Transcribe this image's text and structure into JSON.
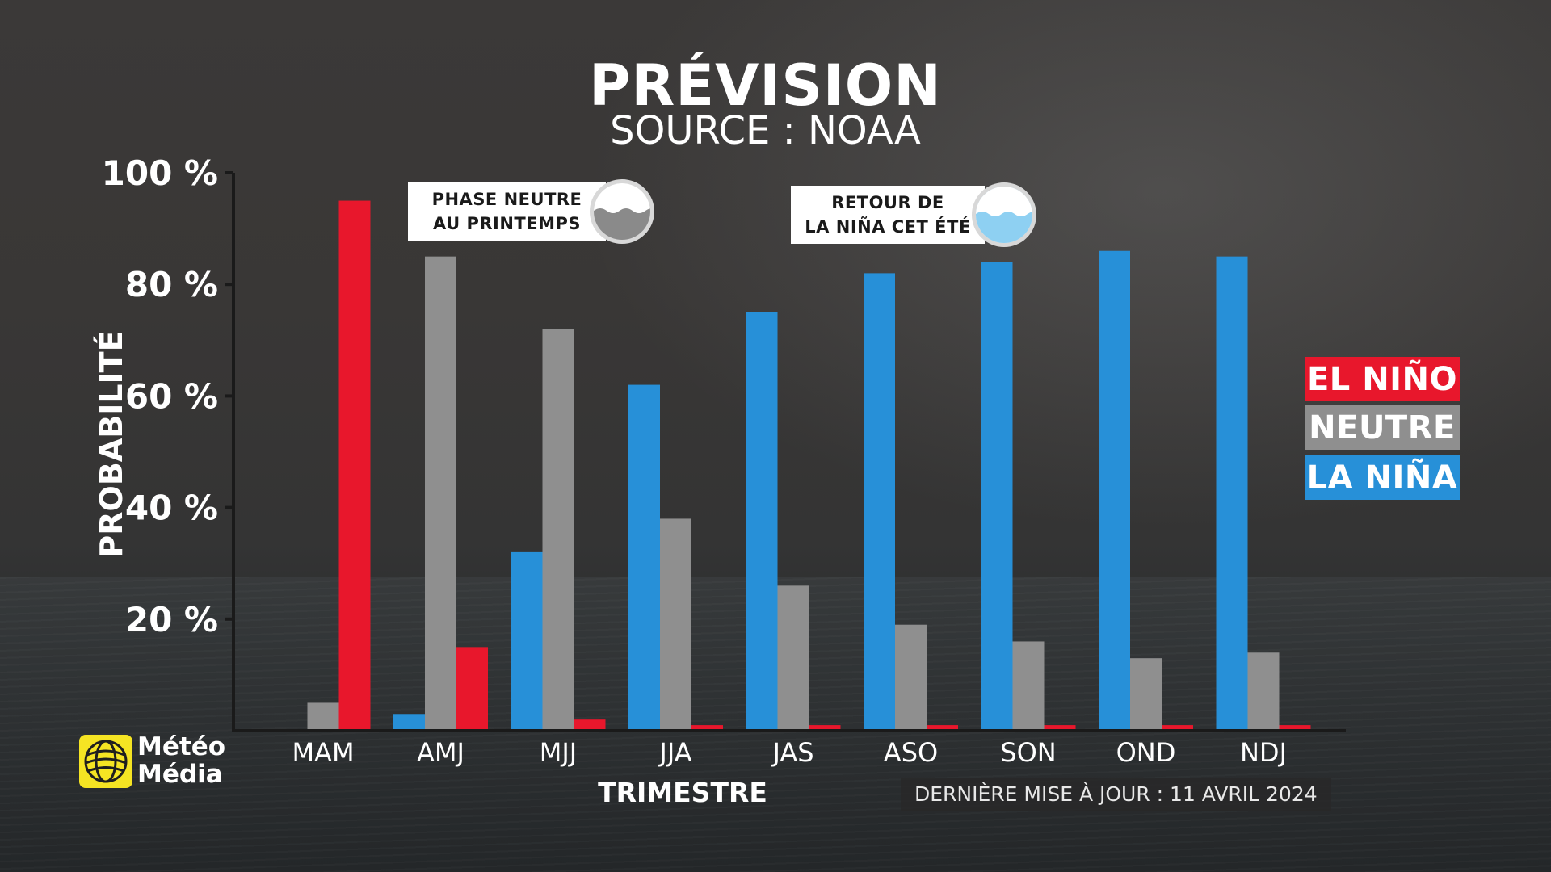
{
  "title": "PRÉVISION",
  "subtitle": "SOURCE : NOAA",
  "callouts": [
    {
      "lines": [
        "PHASE NEUTRE",
        "AU PRINTEMPS"
      ],
      "icon": "globe-neutral-icon",
      "color": "#8a8a8a"
    },
    {
      "lines": [
        "RETOUR DE",
        "LA NIÑA CET ÉTÉ"
      ],
      "icon": "globe-la-nina-icon",
      "color": "#8ed0f2"
    }
  ],
  "legend": [
    {
      "label": "EL NIÑO",
      "color": "#e8172c"
    },
    {
      "label": "NEUTRE",
      "color": "#8f8f8f"
    },
    {
      "label": "LA NIÑA",
      "color": "#2790d8"
    }
  ],
  "logo": {
    "line1": "Météo",
    "line2": "Média",
    "color": "#f5e423"
  },
  "updated": "DERNIÈRE MISE À JOUR : 11 AVRIL 2024",
  "chart_data": {
    "type": "bar",
    "xlabel": "TRIMESTRE",
    "ylabel": "PROBABILITÉ",
    "ylim": [
      0,
      100
    ],
    "yticks": [
      20,
      40,
      60,
      80,
      100
    ],
    "ytick_labels": [
      "20 %",
      "40 %",
      "60 %",
      "80 %",
      "100 %"
    ],
    "categories": [
      "MAM",
      "AMJ",
      "MJJ",
      "JJA",
      "JAS",
      "ASO",
      "SON",
      "OND",
      "NDJ"
    ],
    "series": [
      {
        "name": "LA NIÑA",
        "color": "#2790d8",
        "values": [
          0,
          3,
          32,
          62,
          75,
          82,
          84,
          86,
          85
        ]
      },
      {
        "name": "NEUTRE",
        "color": "#8f8f8f",
        "values": [
          5,
          85,
          72,
          38,
          26,
          19,
          16,
          13,
          14
        ]
      },
      {
        "name": "EL NIÑO",
        "color": "#e8172c",
        "values": [
          95,
          15,
          2,
          1,
          1,
          1,
          1,
          1,
          1
        ]
      }
    ],
    "grid": false,
    "legend_position": "right"
  }
}
